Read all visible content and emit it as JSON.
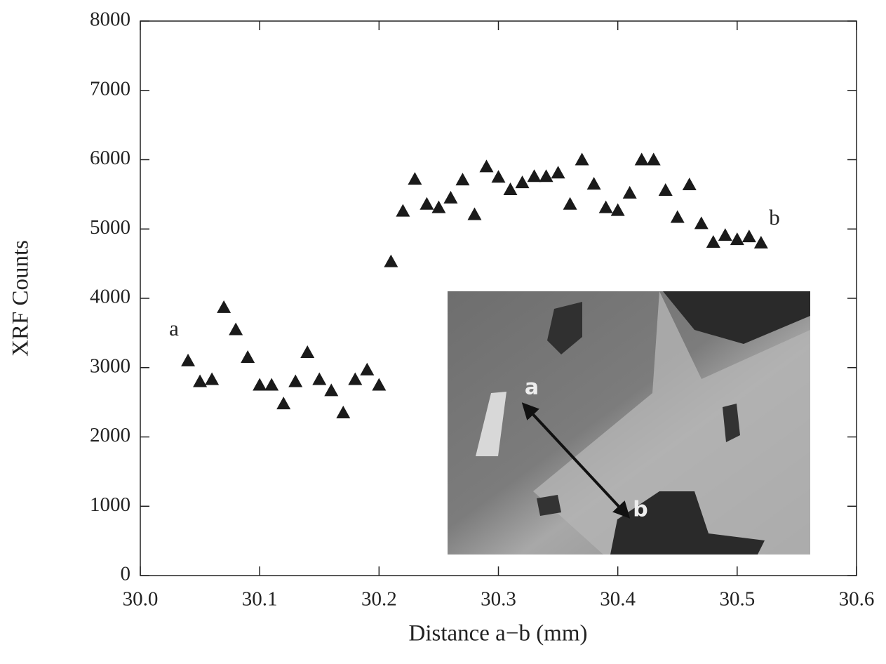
{
  "chart_data": {
    "type": "scatter",
    "xlabel": "Distance a−b (mm)",
    "ylabel": "XRF Counts",
    "x": [
      30.04,
      30.05,
      30.06,
      30.07,
      30.08,
      30.09,
      30.1,
      30.11,
      30.12,
      30.13,
      30.14,
      30.15,
      30.16,
      30.17,
      30.18,
      30.19,
      30.2,
      30.21,
      30.22,
      30.23,
      30.24,
      30.25,
      30.26,
      30.27,
      30.28,
      30.29,
      30.3,
      30.31,
      30.32,
      30.33,
      30.34,
      30.35,
      30.36,
      30.37,
      30.38,
      30.39,
      30.4,
      30.41,
      30.42,
      30.43,
      30.44,
      30.45,
      30.46,
      30.47,
      30.48,
      30.49,
      30.5,
      30.51,
      30.52
    ],
    "values": [
      3100,
      2800,
      2830,
      3870,
      3550,
      3150,
      2750,
      2750,
      2480,
      2800,
      3220,
      2830,
      2670,
      2350,
      2830,
      2970,
      2750,
      4530,
      5260,
      5720,
      5360,
      5310,
      5450,
      5710,
      5210,
      5900,
      5750,
      5570,
      5670,
      5760,
      5760,
      5810,
      5360,
      6000,
      5650,
      5310,
      5270,
      5520,
      6000,
      6000,
      5560,
      5170,
      5640,
      5080,
      4810,
      4910,
      4850,
      4890,
      4800
    ],
    "color": "#1a1a1a",
    "marker": "triangle",
    "xlim": [
      30.0,
      30.6
    ],
    "xticks": [
      {
        "value": 30.0,
        "label": "30.0"
      },
      {
        "value": 30.1,
        "label": "30.1"
      },
      {
        "value": 30.2,
        "label": "30.2"
      },
      {
        "value": 30.3,
        "label": "30.3"
      },
      {
        "value": 30.4,
        "label": "30.4"
      },
      {
        "value": 30.5,
        "label": "30.5"
      },
      {
        "value": 30.6,
        "label": "30.6"
      }
    ],
    "ylim": [
      0,
      8000
    ],
    "yticks": [
      0,
      1000,
      2000,
      3000,
      4000,
      5000,
      6000,
      7000,
      8000
    ],
    "grid": false,
    "annotations": [
      "a",
      "b"
    ],
    "inset_labels": [
      "a",
      "b"
    ]
  }
}
